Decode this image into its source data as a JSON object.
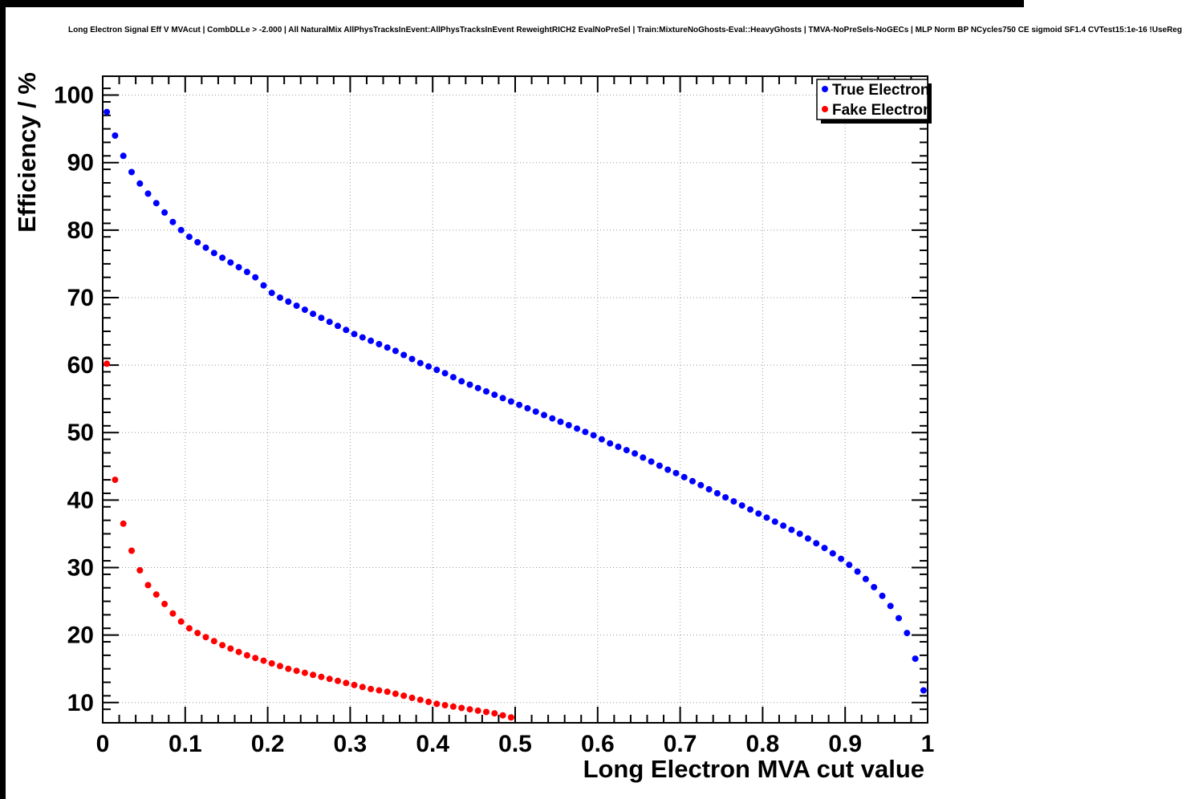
{
  "chart_data": {
    "type": "scatter",
    "title": "Long Electron Signal Eff V MVAcut | CombDLLe > -2.000 | All NaturalMix AllPhysTracksInEvent:AllPhysTracksInEvent ReweightRICH2 EvalNoPreSel | Train:MixtureNoGhosts-Eval::HeavyGhosts | TMVA-NoPreSels-NoGECs | MLP Norm BP NCycles750 CE sigmoid SF1.4 CVTest15:1e-16 !UseReg",
    "xlabel": "Long Electron MVA cut value",
    "ylabel": "Efficiency / %",
    "xlim": [
      0,
      1
    ],
    "ylim": [
      7,
      102.8
    ],
    "xticks": [
      0,
      0.1,
      0.2,
      0.3,
      0.4,
      0.5,
      0.6,
      0.7,
      0.8,
      0.9,
      1
    ],
    "xtick_labels": [
      "0",
      "0.1",
      "0.2",
      "0.3",
      "0.4",
      "0.5",
      "0.6",
      "0.7",
      "0.8",
      "0.9",
      "1"
    ],
    "yticks": [
      10,
      20,
      30,
      40,
      50,
      60,
      70,
      80,
      90,
      100
    ],
    "ytick_labels": [
      "10",
      "20",
      "30",
      "40",
      "50",
      "60",
      "70",
      "80",
      "90",
      "100"
    ],
    "x_minor_step": 0.02,
    "y_minor_step": 2,
    "grid": true,
    "grid_color": "#999999",
    "legend_position": "top-right",
    "series": [
      {
        "name": "True Electron",
        "color": "#0000ff",
        "marker": "circle",
        "points": [
          [
            0.005,
            97.5
          ],
          [
            0.015,
            94.0
          ],
          [
            0.025,
            91.0
          ],
          [
            0.035,
            88.6
          ],
          [
            0.045,
            86.9
          ],
          [
            0.055,
            85.4
          ],
          [
            0.065,
            84.0
          ],
          [
            0.075,
            82.6
          ],
          [
            0.085,
            81.2
          ],
          [
            0.095,
            80.0
          ],
          [
            0.105,
            79.0
          ],
          [
            0.115,
            78.2
          ],
          [
            0.125,
            77.4
          ],
          [
            0.135,
            76.6
          ],
          [
            0.145,
            75.9
          ],
          [
            0.155,
            75.2
          ],
          [
            0.165,
            74.5
          ],
          [
            0.175,
            73.8
          ],
          [
            0.185,
            73.0
          ],
          [
            0.195,
            71.8
          ],
          [
            0.205,
            70.7
          ],
          [
            0.215,
            70.0
          ],
          [
            0.225,
            69.4
          ],
          [
            0.235,
            68.8
          ],
          [
            0.245,
            68.2
          ],
          [
            0.255,
            67.6
          ],
          [
            0.265,
            67.0
          ],
          [
            0.275,
            66.4
          ],
          [
            0.285,
            65.8
          ],
          [
            0.295,
            65.2
          ],
          [
            0.305,
            64.6
          ],
          [
            0.315,
            64.1
          ],
          [
            0.325,
            63.6
          ],
          [
            0.335,
            63.1
          ],
          [
            0.345,
            62.6
          ],
          [
            0.355,
            62.1
          ],
          [
            0.365,
            61.5
          ],
          [
            0.375,
            60.9
          ],
          [
            0.385,
            60.3
          ],
          [
            0.395,
            59.8
          ],
          [
            0.405,
            59.3
          ],
          [
            0.415,
            58.8
          ],
          [
            0.425,
            58.2
          ],
          [
            0.435,
            57.6
          ],
          [
            0.445,
            57.1
          ],
          [
            0.455,
            56.6
          ],
          [
            0.465,
            56.1
          ],
          [
            0.475,
            55.6
          ],
          [
            0.485,
            55.1
          ],
          [
            0.495,
            54.6
          ],
          [
            0.505,
            54.1
          ],
          [
            0.515,
            53.6
          ],
          [
            0.525,
            53.1
          ],
          [
            0.535,
            52.6
          ],
          [
            0.545,
            52.1
          ],
          [
            0.555,
            51.6
          ],
          [
            0.565,
            51.1
          ],
          [
            0.575,
            50.6
          ],
          [
            0.585,
            50.1
          ],
          [
            0.595,
            49.6
          ],
          [
            0.605,
            49.0
          ],
          [
            0.615,
            48.4
          ],
          [
            0.625,
            47.9
          ],
          [
            0.635,
            47.4
          ],
          [
            0.645,
            46.9
          ],
          [
            0.655,
            46.3
          ],
          [
            0.665,
            45.7
          ],
          [
            0.675,
            45.1
          ],
          [
            0.685,
            44.5
          ],
          [
            0.695,
            44.0
          ],
          [
            0.705,
            43.4
          ],
          [
            0.715,
            42.8
          ],
          [
            0.725,
            42.2
          ],
          [
            0.735,
            41.6
          ],
          [
            0.745,
            41.0
          ],
          [
            0.755,
            40.4
          ],
          [
            0.765,
            39.8
          ],
          [
            0.775,
            39.2
          ],
          [
            0.785,
            38.6
          ],
          [
            0.795,
            38.0
          ],
          [
            0.805,
            37.4
          ],
          [
            0.815,
            36.8
          ],
          [
            0.825,
            36.2
          ],
          [
            0.835,
            35.6
          ],
          [
            0.845,
            35.0
          ],
          [
            0.855,
            34.3
          ],
          [
            0.865,
            33.6
          ],
          [
            0.875,
            32.9
          ],
          [
            0.885,
            32.1
          ],
          [
            0.895,
            31.3
          ],
          [
            0.905,
            30.4
          ],
          [
            0.915,
            29.4
          ],
          [
            0.925,
            28.3
          ],
          [
            0.935,
            27.1
          ],
          [
            0.945,
            25.8
          ],
          [
            0.955,
            24.3
          ],
          [
            0.965,
            22.5
          ],
          [
            0.975,
            20.3
          ],
          [
            0.985,
            16.5
          ],
          [
            0.995,
            11.8
          ]
        ]
      },
      {
        "name": "Fake Electron",
        "color": "#ff0000",
        "marker": "circle",
        "points": [
          [
            0.005,
            60.2
          ],
          [
            0.015,
            43.0
          ],
          [
            0.025,
            36.5
          ],
          [
            0.035,
            32.5
          ],
          [
            0.045,
            29.6
          ],
          [
            0.055,
            27.4
          ],
          [
            0.065,
            26.0
          ],
          [
            0.075,
            24.6
          ],
          [
            0.085,
            23.2
          ],
          [
            0.095,
            22.0
          ],
          [
            0.105,
            21.0
          ],
          [
            0.115,
            20.3
          ],
          [
            0.125,
            19.7
          ],
          [
            0.135,
            19.1
          ],
          [
            0.145,
            18.5
          ],
          [
            0.155,
            18.0
          ],
          [
            0.165,
            17.5
          ],
          [
            0.175,
            17.0
          ],
          [
            0.185,
            16.6
          ],
          [
            0.195,
            16.2
          ],
          [
            0.205,
            15.8
          ],
          [
            0.215,
            15.4
          ],
          [
            0.225,
            15.0
          ],
          [
            0.235,
            14.7
          ],
          [
            0.245,
            14.4
          ],
          [
            0.255,
            14.1
          ],
          [
            0.265,
            13.8
          ],
          [
            0.275,
            13.5
          ],
          [
            0.285,
            13.2
          ],
          [
            0.295,
            12.9
          ],
          [
            0.305,
            12.6
          ],
          [
            0.315,
            12.3
          ],
          [
            0.325,
            12.0
          ],
          [
            0.335,
            11.8
          ],
          [
            0.345,
            11.6
          ],
          [
            0.355,
            11.3
          ],
          [
            0.365,
            11.0
          ],
          [
            0.375,
            10.7
          ],
          [
            0.385,
            10.4
          ],
          [
            0.395,
            10.1
          ],
          [
            0.405,
            9.8
          ],
          [
            0.415,
            9.6
          ],
          [
            0.425,
            9.4
          ],
          [
            0.435,
            9.2
          ],
          [
            0.445,
            9.0
          ],
          [
            0.455,
            8.8
          ],
          [
            0.465,
            8.6
          ],
          [
            0.475,
            8.4
          ],
          [
            0.485,
            8.1
          ],
          [
            0.495,
            7.8
          ]
        ]
      }
    ]
  }
}
